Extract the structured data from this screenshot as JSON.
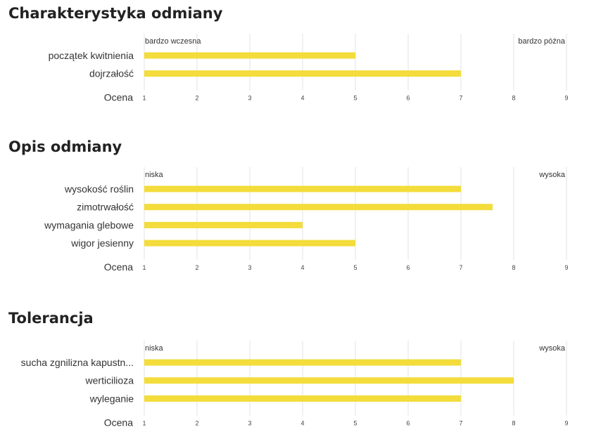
{
  "sections": [
    {
      "title": "Charakterystyka odmiany",
      "chart_data": {
        "type": "bar",
        "orientation": "horizontal",
        "categories": [
          "początek kwitnienia",
          "dojrzałość"
        ],
        "values": [
          5,
          7
        ],
        "xlabel": "Ocena",
        "xlim": [
          1,
          9
        ],
        "ticks": [
          "1",
          "2",
          "3",
          "4",
          "5",
          "6",
          "7",
          "8",
          "9"
        ],
        "scale_low_label": "bardzo wczesna",
        "scale_high_label": "bardzo późna",
        "grid": true,
        "bar_color": "#f3dc3b"
      }
    },
    {
      "title": "Opis odmiany",
      "chart_data": {
        "type": "bar",
        "orientation": "horizontal",
        "categories": [
          "wysokość roślin",
          "zimotrwałość",
          "wymagania glebowe",
          "wigor jesienny"
        ],
        "values": [
          7,
          7.6,
          4,
          5
        ],
        "xlabel": "Ocena",
        "xlim": [
          1,
          9
        ],
        "ticks": [
          "1",
          "2",
          "3",
          "4",
          "5",
          "6",
          "7",
          "8",
          "9"
        ],
        "scale_low_label": "niska",
        "scale_high_label": "wysoka",
        "grid": true,
        "bar_color": "#f3dc3b"
      }
    },
    {
      "title": "Tolerancja",
      "chart_data": {
        "type": "bar",
        "orientation": "horizontal",
        "categories": [
          "sucha zgnilizna kapustn...",
          "werticilioza",
          "wyleganie"
        ],
        "values": [
          7,
          8,
          7
        ],
        "xlabel": "Ocena",
        "xlim": [
          1,
          9
        ],
        "ticks": [
          "1",
          "2",
          "3",
          "4",
          "5",
          "6",
          "7",
          "8",
          "9"
        ],
        "scale_low_label": "niska",
        "scale_high_label": "wysoka",
        "grid": true,
        "bar_color": "#f3dc3b"
      }
    }
  ]
}
